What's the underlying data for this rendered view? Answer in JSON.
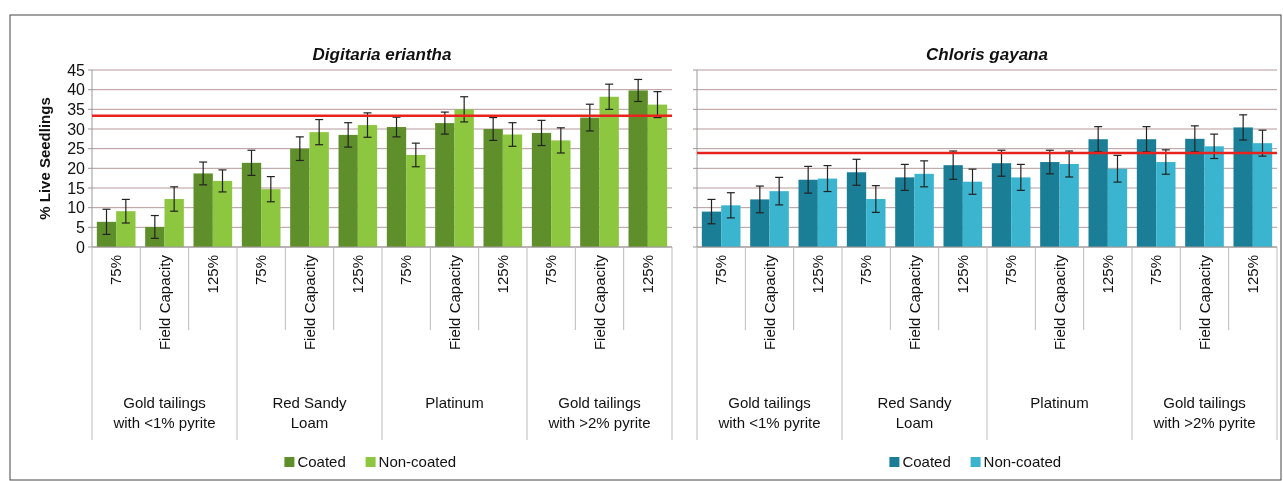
{
  "chart_data": [
    {
      "type": "bar",
      "title": "Digitaria eriantha",
      "ylabel": "% Live Seedlings",
      "categories": [
        "75%",
        "Field Capacity",
        "125%",
        "75%",
        "Field Capacity",
        "125%",
        "75%",
        "Field Capacity",
        "125%",
        "75%",
        "Field Capacity",
        "125%"
      ],
      "annotations": [
        "Gold tailings\nwith <1% pyrite",
        "Red Sandy\nLoam",
        "Platinum",
        "Gold tailings\nwith >2% pyrite"
      ],
      "series": [
        {
          "name": "Coated",
          "color": "#5f8f2a",
          "values": [
            6.4,
            5.1,
            18.7,
            21.4,
            25.0,
            28.5,
            30.5,
            31.5,
            30.0,
            29.0,
            32.9,
            39.8
          ],
          "errors": [
            3.2,
            2.9,
            2.9,
            3.2,
            3.0,
            3.1,
            2.5,
            2.8,
            2.9,
            3.2,
            3.4,
            2.8
          ]
        },
        {
          "name": "Non-coated",
          "color": "#8dc63f",
          "values": [
            9.1,
            12.2,
            16.8,
            14.7,
            29.2,
            31.0,
            23.4,
            35.0,
            28.6,
            27.1,
            38.2,
            36.2
          ],
          "errors": [
            3.0,
            3.1,
            2.8,
            3.2,
            3.2,
            3.1,
            3.0,
            3.2,
            3.0,
            3.2,
            3.2,
            3.3
          ]
        }
      ],
      "ylim": [
        0,
        45
      ],
      "yticks": [
        0,
        5,
        10,
        15,
        20,
        25,
        30,
        35,
        40,
        45
      ],
      "grid": "y",
      "legend": "bottom",
      "ref_lines": [
        {
          "axis": "y",
          "value": 33.4,
          "color": "#e8231e"
        }
      ]
    },
    {
      "type": "bar",
      "title": "Chloris gayana",
      "categories": [
        "75%",
        "Field Capacity",
        "125%",
        "75%",
        "Field Capacity",
        "125%",
        "75%",
        "Field Capacity",
        "125%",
        "75%",
        "Field Capacity",
        "125%"
      ],
      "annotations": [
        "Gold tailings\nwith <1% pyrite",
        "Red Sandy\nLoam",
        "Platinum",
        "Gold tailings\nwith >2% pyrite"
      ],
      "series": [
        {
          "name": "Coated",
          "color": "#1a7f96",
          "values": [
            9.0,
            12.1,
            17.1,
            19.0,
            17.7,
            20.8,
            21.3,
            21.6,
            27.4,
            27.4,
            27.5,
            30.4
          ],
          "errors": [
            3.1,
            3.4,
            3.4,
            3.3,
            3.3,
            3.6,
            3.3,
            3.0,
            3.2,
            3.2,
            3.3,
            3.2
          ]
        },
        {
          "name": "Non-coated",
          "color": "#3bb5cf",
          "values": [
            10.6,
            14.2,
            17.4,
            12.2,
            18.6,
            16.6,
            17.7,
            21.1,
            19.9,
            21.6,
            25.6,
            26.4
          ],
          "errors": [
            3.2,
            3.5,
            3.3,
            3.4,
            3.3,
            3.2,
            3.3,
            3.3,
            3.4,
            3.1,
            3.1,
            3.3
          ]
        }
      ],
      "ylim": [
        0,
        45
      ],
      "yticks": [
        0,
        5,
        10,
        15,
        20,
        25,
        30,
        35,
        40,
        45
      ],
      "grid": "y",
      "legend": "bottom",
      "tick_labels": "x",
      "ref_lines": [
        {
          "axis": "y",
          "value": 23.9,
          "color": "#e8231e"
        }
      ]
    }
  ]
}
